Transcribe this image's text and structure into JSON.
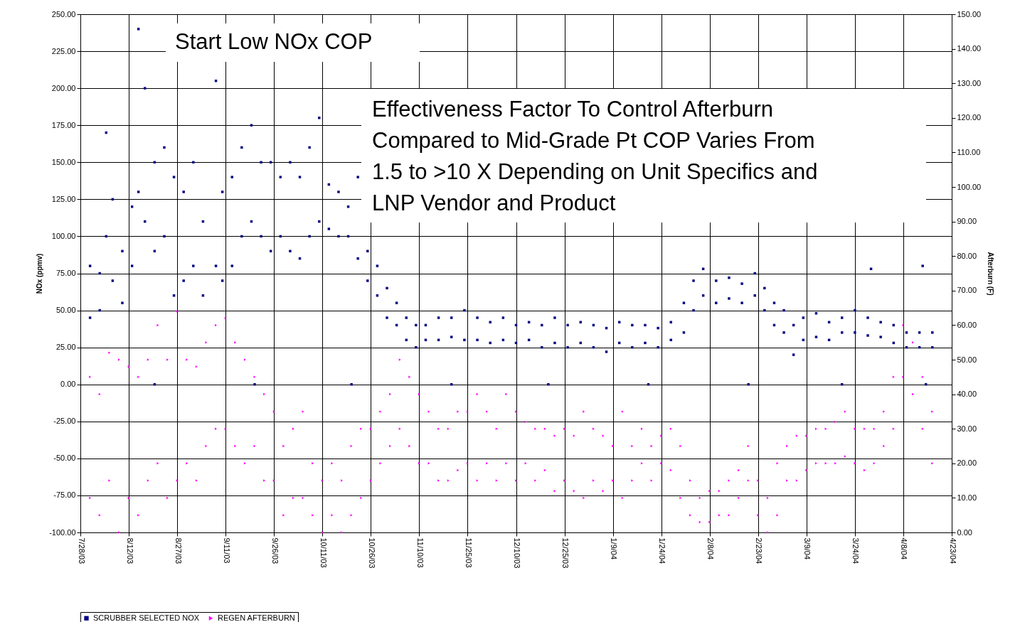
{
  "chart_data": {
    "type": "scatter",
    "ylabel": "NOx (ppmv)",
    "y2label": "Afterburn (F)",
    "annotations": [
      "Start Low NOx COP",
      "Effectiveness Factor To Control Afterburn\nCompared to Mid-Grade Pt COP Varies From\n1.5 to >10 X Depending on Unit Specifics and\nLNP Vendor and Product"
    ],
    "xlim": [
      "2003-07-28",
      "2004-04-23"
    ],
    "xticks": [
      {
        "value": "2003-07-28",
        "label": "7/28/03"
      },
      {
        "value": "2003-08-12",
        "label": "8/12/03"
      },
      {
        "value": "2003-08-27",
        "label": "8/27/03"
      },
      {
        "value": "2003-09-11",
        "label": "9/11/03"
      },
      {
        "value": "2003-09-26",
        "label": "9/26/03"
      },
      {
        "value": "2003-10-11",
        "label": "10/11/03"
      },
      {
        "value": "2003-10-26",
        "label": "10/26/03"
      },
      {
        "value": "2003-11-10",
        "label": "11/10/03"
      },
      {
        "value": "2003-11-25",
        "label": "11/25/03"
      },
      {
        "value": "2003-12-10",
        "label": "12/10/03"
      },
      {
        "value": "2003-12-25",
        "label": "12/25/03"
      },
      {
        "value": "2004-01-09",
        "label": "1/9/04"
      },
      {
        "value": "2004-01-24",
        "label": "1/24/04"
      },
      {
        "value": "2004-02-08",
        "label": "2/8/04"
      },
      {
        "value": "2004-02-23",
        "label": "2/23/04"
      },
      {
        "value": "2004-03-09",
        "label": "3/9/04"
      },
      {
        "value": "2004-03-24",
        "label": "3/24/04"
      },
      {
        "value": "2004-04-08",
        "label": "4/8/04"
      },
      {
        "value": "2004-04-23",
        "label": "4/23/04"
      }
    ],
    "ylim": [
      -100,
      250
    ],
    "yticks": [
      {
        "value": -100,
        "label": "-100.00"
      },
      {
        "value": -75,
        "label": "-75.00"
      },
      {
        "value": -50,
        "label": "-50.00"
      },
      {
        "value": -25,
        "label": "-25.00"
      },
      {
        "value": 0,
        "label": "0.00"
      },
      {
        "value": 25,
        "label": "25.00"
      },
      {
        "value": 50,
        "label": "50.00"
      },
      {
        "value": 75,
        "label": "75.00"
      },
      {
        "value": 100,
        "label": "100.00"
      },
      {
        "value": 125,
        "label": "125.00"
      },
      {
        "value": 150,
        "label": "150.00"
      },
      {
        "value": 175,
        "label": "175.00"
      },
      {
        "value": 200,
        "label": "200.00"
      },
      {
        "value": 225,
        "label": "225.00"
      },
      {
        "value": 250,
        "label": "250.00"
      }
    ],
    "y2lim": [
      0,
      150
    ],
    "y2ticks": [
      {
        "value": 0,
        "label": "0.00"
      },
      {
        "value": 10,
        "label": "10.00"
      },
      {
        "value": 20,
        "label": "20.00"
      },
      {
        "value": 30,
        "label": "30.00"
      },
      {
        "value": 40,
        "label": "40.00"
      },
      {
        "value": 50,
        "label": "50.00"
      },
      {
        "value": 60,
        "label": "60.00"
      },
      {
        "value": 70,
        "label": "70.00"
      },
      {
        "value": 80,
        "label": "80.00"
      },
      {
        "value": 90,
        "label": "90.00"
      },
      {
        "value": 100,
        "label": "100.00"
      },
      {
        "value": 110,
        "label": "110.00"
      },
      {
        "value": 120,
        "label": "120.00"
      },
      {
        "value": 130,
        "label": "130.00"
      },
      {
        "value": 140,
        "label": "140.00"
      },
      {
        "value": 150,
        "label": "150.00"
      }
    ],
    "grid": true,
    "legend": "bottom",
    "series": [
      {
        "name": "SCRUBBER SELECTED NOX",
        "color": "#000080",
        "marker": "square",
        "x": [
          "2003-07-31",
          "2003-07-31",
          "2003-08-03",
          "2003-08-03",
          "2003-08-05",
          "2003-08-05",
          "2003-08-07",
          "2003-08-07",
          "2003-08-10",
          "2003-08-10",
          "2003-08-13",
          "2003-08-13",
          "2003-08-15",
          "2003-08-15",
          "2003-08-17",
          "2003-08-17",
          "2003-08-20",
          "2003-08-20",
          "2003-08-23",
          "2003-08-23",
          "2003-08-26",
          "2003-08-26",
          "2003-08-29",
          "2003-08-29",
          "2003-09-01",
          "2003-09-01",
          "2003-09-04",
          "2003-09-04",
          "2003-09-08",
          "2003-09-08",
          "2003-09-10",
          "2003-09-10",
          "2003-09-13",
          "2003-09-13",
          "2003-09-16",
          "2003-09-16",
          "2003-09-19",
          "2003-09-19",
          "2003-09-22",
          "2003-09-22",
          "2003-09-25",
          "2003-09-25",
          "2003-09-28",
          "2003-09-28",
          "2003-10-01",
          "2003-10-01",
          "2003-10-04",
          "2003-10-04",
          "2003-10-07",
          "2003-10-07",
          "2003-10-10",
          "2003-10-10",
          "2003-10-13",
          "2003-10-13",
          "2003-10-16",
          "2003-10-16",
          "2003-10-19",
          "2003-10-19",
          "2003-10-22",
          "2003-10-22",
          "2003-10-25",
          "2003-10-25",
          "2003-10-28",
          "2003-10-28",
          "2003-10-31",
          "2003-10-31",
          "2003-11-03",
          "2003-11-03",
          "2003-11-06",
          "2003-11-06",
          "2003-11-09",
          "2003-11-09",
          "2003-11-12",
          "2003-11-12",
          "2003-11-16",
          "2003-11-16",
          "2003-11-20",
          "2003-11-20",
          "2003-11-24",
          "2003-11-24",
          "2003-11-28",
          "2003-11-28",
          "2003-12-02",
          "2003-12-02",
          "2003-12-06",
          "2003-12-06",
          "2003-12-10",
          "2003-12-10",
          "2003-12-14",
          "2003-12-14",
          "2003-12-18",
          "2003-12-18",
          "2003-12-22",
          "2003-12-22",
          "2003-12-26",
          "2003-12-26",
          "2003-12-30",
          "2003-12-30",
          "2004-01-03",
          "2004-01-03",
          "2004-01-07",
          "2004-01-07",
          "2004-01-11",
          "2004-01-11",
          "2004-01-15",
          "2004-01-15",
          "2004-01-19",
          "2004-01-19",
          "2004-01-23",
          "2004-01-23",
          "2004-01-27",
          "2004-01-27",
          "2004-01-31",
          "2004-01-31",
          "2004-02-03",
          "2004-02-03",
          "2004-02-06",
          "2004-02-06",
          "2004-02-10",
          "2004-02-10",
          "2004-02-14",
          "2004-02-14",
          "2004-02-18",
          "2004-02-18",
          "2004-02-22",
          "2004-02-22",
          "2004-02-25",
          "2004-02-25",
          "2004-02-28",
          "2004-02-28",
          "2004-03-02",
          "2004-03-02",
          "2004-03-05",
          "2004-03-05",
          "2004-03-08",
          "2004-03-08",
          "2004-03-12",
          "2004-03-12",
          "2004-03-16",
          "2004-03-16",
          "2004-03-20",
          "2004-03-20",
          "2004-03-24",
          "2004-03-24",
          "2004-03-28",
          "2004-03-28",
          "2004-04-01",
          "2004-04-01",
          "2004-04-05",
          "2004-04-05",
          "2004-04-09",
          "2004-04-09",
          "2004-04-13",
          "2004-04-13",
          "2004-04-17",
          "2004-04-17",
          "2003-08-20",
          "2003-09-20",
          "2003-10-20",
          "2003-11-20",
          "2003-12-20",
          "2004-01-20",
          "2004-02-20",
          "2004-03-20",
          "2004-04-15",
          "2004-04-14",
          "2004-03-29"
        ],
        "values": [
          45,
          80,
          50,
          75,
          100,
          170,
          70,
          125,
          55,
          90,
          80,
          120,
          130,
          240,
          110,
          200,
          90,
          150,
          100,
          160,
          60,
          140,
          70,
          130,
          80,
          150,
          60,
          110,
          80,
          205,
          70,
          130,
          80,
          140,
          100,
          160,
          110,
          175,
          100,
          150,
          90,
          150,
          100,
          140,
          90,
          150,
          85,
          140,
          100,
          160,
          110,
          180,
          105,
          135,
          100,
          130,
          100,
          120,
          85,
          140,
          70,
          90,
          60,
          80,
          45,
          65,
          40,
          55,
          30,
          45,
          25,
          40,
          30,
          40,
          30,
          45,
          32,
          45,
          30,
          50,
          30,
          45,
          28,
          42,
          30,
          45,
          28,
          40,
          30,
          42,
          25,
          40,
          28,
          45,
          25,
          40,
          28,
          42,
          25,
          40,
          22,
          38,
          28,
          42,
          25,
          40,
          28,
          40,
          25,
          38,
          30,
          42,
          35,
          55,
          50,
          70,
          60,
          78,
          55,
          70,
          58,
          72,
          55,
          68,
          60,
          75,
          50,
          65,
          40,
          55,
          35,
          50,
          20,
          40,
          30,
          45,
          32,
          48,
          30,
          42,
          35,
          45,
          35,
          50,
          33,
          45,
          32,
          42,
          28,
          40,
          25,
          35,
          25,
          35,
          25,
          35,
          0,
          0,
          0,
          0,
          0,
          0,
          0,
          0,
          0,
          80,
          78
        ]
      },
      {
        "name": "REGEN AFTERBURN",
        "color": "#ff00ff",
        "axis": "y2",
        "marker": "triangle",
        "x": [
          "2003-07-31",
          "2003-07-31",
          "2003-08-03",
          "2003-08-03",
          "2003-08-06",
          "2003-08-06",
          "2003-08-09",
          "2003-08-09",
          "2003-08-12",
          "2003-08-12",
          "2003-08-15",
          "2003-08-15",
          "2003-08-18",
          "2003-08-18",
          "2003-08-21",
          "2003-08-21",
          "2003-08-24",
          "2003-08-24",
          "2003-08-27",
          "2003-08-27",
          "2003-08-30",
          "2003-08-30",
          "2003-09-02",
          "2003-09-02",
          "2003-09-05",
          "2003-09-05",
          "2003-09-08",
          "2003-09-08",
          "2003-09-11",
          "2003-09-11",
          "2003-09-14",
          "2003-09-14",
          "2003-09-17",
          "2003-09-17",
          "2003-09-20",
          "2003-09-20",
          "2003-09-23",
          "2003-09-23",
          "2003-09-26",
          "2003-09-26",
          "2003-09-29",
          "2003-09-29",
          "2003-10-02",
          "2003-10-02",
          "2003-10-05",
          "2003-10-05",
          "2003-10-08",
          "2003-10-08",
          "2003-10-11",
          "2003-10-11",
          "2003-10-14",
          "2003-10-14",
          "2003-10-17",
          "2003-10-17",
          "2003-10-20",
          "2003-10-20",
          "2003-10-23",
          "2003-10-23",
          "2003-10-26",
          "2003-10-26",
          "2003-10-29",
          "2003-10-29",
          "2003-11-01",
          "2003-11-01",
          "2003-11-04",
          "2003-11-04",
          "2003-11-07",
          "2003-11-07",
          "2003-11-10",
          "2003-11-10",
          "2003-11-13",
          "2003-11-13",
          "2003-11-16",
          "2003-11-16",
          "2003-11-19",
          "2003-11-19",
          "2003-11-22",
          "2003-11-22",
          "2003-11-25",
          "2003-11-25",
          "2003-11-28",
          "2003-11-28",
          "2003-12-01",
          "2003-12-01",
          "2003-12-04",
          "2003-12-04",
          "2003-12-07",
          "2003-12-07",
          "2003-12-10",
          "2003-12-10",
          "2003-12-13",
          "2003-12-13",
          "2003-12-16",
          "2003-12-16",
          "2003-12-19",
          "2003-12-19",
          "2003-12-22",
          "2003-12-22",
          "2003-12-25",
          "2003-12-25",
          "2003-12-28",
          "2003-12-28",
          "2003-12-31",
          "2003-12-31",
          "2004-01-03",
          "2004-01-03",
          "2004-01-06",
          "2004-01-06",
          "2004-01-09",
          "2004-01-09",
          "2004-01-12",
          "2004-01-12",
          "2004-01-15",
          "2004-01-15",
          "2004-01-18",
          "2004-01-18",
          "2004-01-21",
          "2004-01-21",
          "2004-01-24",
          "2004-01-24",
          "2004-01-27",
          "2004-01-27",
          "2004-01-30",
          "2004-01-30",
          "2004-02-02",
          "2004-02-02",
          "2004-02-05",
          "2004-02-05",
          "2004-02-08",
          "2004-02-08",
          "2004-02-11",
          "2004-02-11",
          "2004-02-14",
          "2004-02-14",
          "2004-02-17",
          "2004-02-17",
          "2004-02-20",
          "2004-02-20",
          "2004-02-23",
          "2004-02-23",
          "2004-02-26",
          "2004-02-26",
          "2004-02-29",
          "2004-02-29",
          "2004-03-03",
          "2004-03-03",
          "2004-03-06",
          "2004-03-06",
          "2004-03-09",
          "2004-03-09",
          "2004-03-12",
          "2004-03-12",
          "2004-03-15",
          "2004-03-15",
          "2004-03-18",
          "2004-03-18",
          "2004-03-21",
          "2004-03-21",
          "2004-03-24",
          "2004-03-24",
          "2004-03-27",
          "2004-03-27",
          "2004-03-30",
          "2004-03-30",
          "2004-04-02",
          "2004-04-02",
          "2004-04-05",
          "2004-04-05",
          "2004-04-08",
          "2004-04-08",
          "2004-04-11",
          "2004-04-11",
          "2004-04-14",
          "2004-04-14",
          "2004-04-17",
          "2004-04-17"
        ],
        "values": [
          10,
          45,
          5,
          40,
          15,
          52,
          0,
          50,
          10,
          48,
          5,
          45,
          15,
          50,
          20,
          60,
          10,
          50,
          15,
          64,
          20,
          50,
          15,
          48,
          25,
          55,
          30,
          60,
          30,
          62,
          25,
          55,
          20,
          50,
          25,
          45,
          15,
          40,
          15,
          35,
          5,
          25,
          10,
          30,
          10,
          35,
          5,
          20,
          0,
          15,
          5,
          20,
          0,
          15,
          5,
          25,
          10,
          30,
          15,
          30,
          20,
          35,
          25,
          40,
          30,
          50,
          25,
          45,
          20,
          40,
          20,
          35,
          15,
          30,
          15,
          30,
          18,
          35,
          20,
          35,
          15,
          40,
          20,
          35,
          15,
          30,
          20,
          40,
          15,
          35,
          20,
          32,
          15,
          30,
          18,
          30,
          12,
          28,
          15,
          30,
          12,
          28,
          10,
          35,
          15,
          30,
          12,
          28,
          15,
          25,
          10,
          35,
          15,
          25,
          20,
          30,
          15,
          25,
          20,
          28,
          18,
          30,
          10,
          25,
          5,
          15,
          3,
          10,
          3,
          12,
          5,
          12,
          5,
          15,
          10,
          18,
          15,
          25,
          5,
          15,
          0,
          10,
          5,
          20,
          15,
          25,
          15,
          28,
          18,
          28,
          20,
          30,
          20,
          30,
          20,
          32,
          22,
          35,
          20,
          30,
          18,
          30,
          20,
          30,
          25,
          35,
          30,
          45,
          45,
          60,
          40,
          55,
          30,
          45,
          20,
          35
        ]
      }
    ]
  }
}
